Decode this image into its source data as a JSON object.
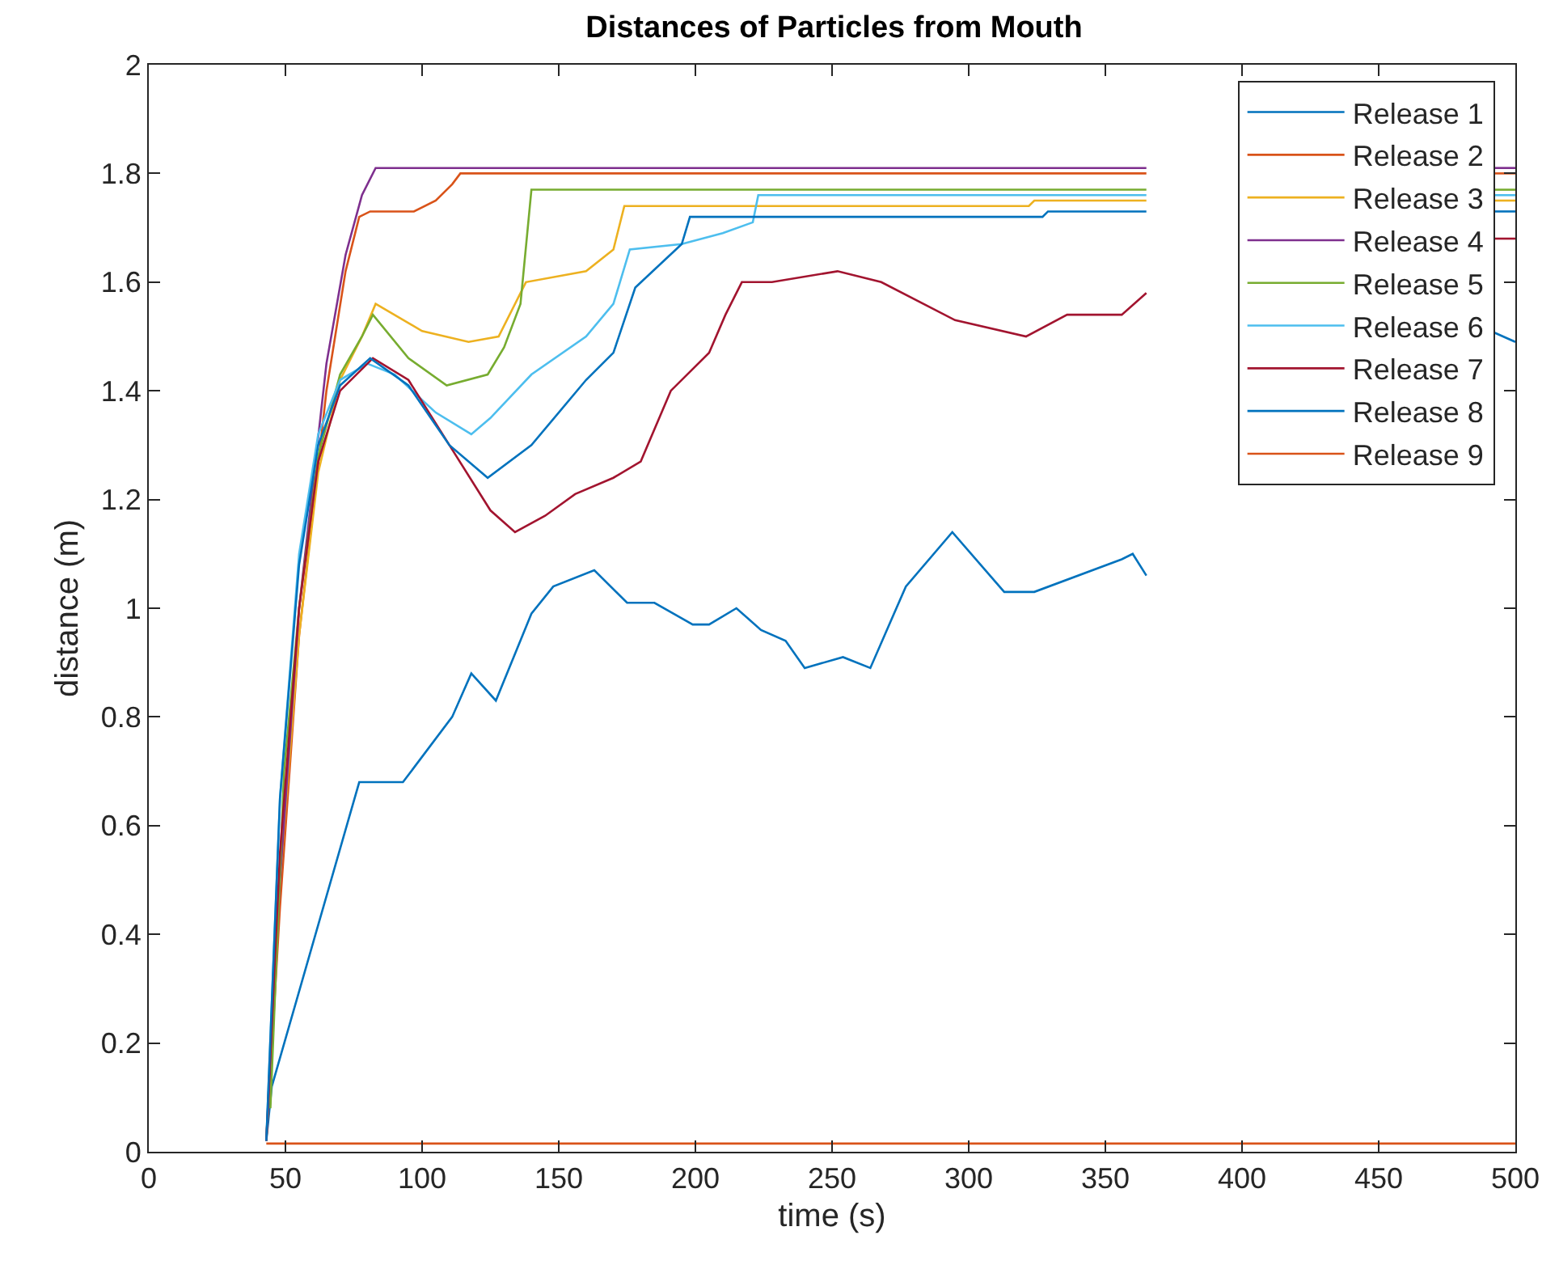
{
  "chart_data": {
    "type": "line",
    "title": "Distances of Particles from Mouth",
    "xlabel": "time (s)",
    "ylabel": "distance (m)",
    "xlim": [
      0,
      500
    ],
    "xticks": [
      0,
      50,
      100,
      150,
      200,
      250,
      300,
      350,
      400,
      450,
      500
    ],
    "ylim": [
      0,
      2
    ],
    "yticks": [
      0,
      0.2,
      0.4,
      0.6,
      0.8,
      1,
      1.2,
      1.4,
      1.6,
      1.8,
      2
    ],
    "grid": false,
    "legend": "top right",
    "marker": "none",
    "line_style": "solid",
    "series": [
      {
        "name": "Release 1",
        "color": "#0072bd",
        "x": [
          43,
          45,
          77,
          93,
          111,
          118,
          127,
          140,
          148,
          163,
          175,
          185,
          199,
          205,
          215,
          224,
          233,
          240,
          254,
          264,
          277,
          294,
          313,
          324,
          356,
          360,
          365,
          430,
          491,
          500
        ],
        "values": [
          0.02,
          0.12,
          0.68,
          0.68,
          0.8,
          0.88,
          0.83,
          0.99,
          1.04,
          1.07,
          1.01,
          1.01,
          0.97,
          0.97,
          1.0,
          0.96,
          0.94,
          0.89,
          0.91,
          0.89,
          1.04,
          1.14,
          1.03,
          1.03,
          1.09,
          1.1,
          1.06,
          null,
          1.51,
          1.49
        ]
      },
      {
        "name": "Release 2",
        "color": "#d95319",
        "x": [
          43,
          48,
          55,
          65,
          72,
          77,
          81,
          97,
          105,
          111,
          114,
          365,
          430,
          491,
          500
        ],
        "values": [
          0.02,
          0.45,
          0.95,
          1.4,
          1.62,
          1.72,
          1.73,
          1.73,
          1.75,
          1.78,
          1.8,
          1.8,
          null,
          1.8,
          1.8
        ]
      },
      {
        "name": "Release 3",
        "color": "#edb120",
        "x": [
          43,
          48,
          55,
          62,
          70,
          78,
          83,
          100,
          117,
          128,
          138,
          160,
          170,
          174,
          322,
          324,
          365,
          430,
          491,
          500
        ],
        "values": [
          0.02,
          0.5,
          0.95,
          1.25,
          1.42,
          1.5,
          1.56,
          1.51,
          1.49,
          1.5,
          1.6,
          1.62,
          1.66,
          1.74,
          1.74,
          1.75,
          1.75,
          null,
          1.75,
          1.75
        ]
      },
      {
        "name": "Release 4",
        "color": "#7e2f8e",
        "x": [
          43,
          48,
          55,
          65,
          72,
          78,
          83,
          365,
          430,
          491,
          500
        ],
        "values": [
          0.02,
          0.5,
          1.0,
          1.45,
          1.65,
          1.76,
          1.81,
          1.81,
          null,
          1.81,
          1.81
        ]
      },
      {
        "name": "Release 5",
        "color": "#77ac30",
        "x": [
          44.5,
          49.5,
          55,
          62,
          70,
          78,
          82,
          95,
          109,
          124,
          130,
          136,
          140,
          365,
          430,
          491,
          500
        ],
        "values": [
          0.08,
          0.7,
          1.0,
          1.28,
          1.43,
          1.5,
          1.54,
          1.46,
          1.41,
          1.43,
          1.48,
          1.56,
          1.77,
          1.77,
          null,
          1.77,
          1.77
        ]
      },
      {
        "name": "Release 6",
        "color": "#4dbeee",
        "x": [
          43,
          48,
          55,
          62,
          70,
          80,
          90,
          105,
          118,
          125,
          140,
          160,
          170,
          176,
          195,
          210,
          221,
          223,
          365,
          430,
          491,
          500
        ],
        "values": [
          0.02,
          0.65,
          1.1,
          1.32,
          1.42,
          1.45,
          1.43,
          1.36,
          1.32,
          1.35,
          1.43,
          1.5,
          1.56,
          1.66,
          1.67,
          1.69,
          1.71,
          1.76,
          1.76,
          null,
          1.76,
          1.76
        ]
      },
      {
        "name": "Release 7",
        "color": "#a2142f",
        "x": [
          43,
          48,
          55,
          62,
          70,
          82,
          95,
          110,
          125,
          134,
          145,
          156,
          170,
          180,
          191,
          205,
          211,
          217,
          228,
          252,
          268,
          295,
          321,
          336,
          356,
          365,
          430,
          491,
          500
        ],
        "values": [
          0.02,
          0.55,
          1.0,
          1.27,
          1.4,
          1.46,
          1.42,
          1.3,
          1.18,
          1.14,
          1.17,
          1.21,
          1.24,
          1.27,
          1.4,
          1.47,
          1.54,
          1.6,
          1.6,
          1.62,
          1.6,
          1.53,
          1.5,
          1.54,
          1.54,
          1.58,
          null,
          1.68,
          1.68
        ]
      },
      {
        "name": "Release 8",
        "color": "#0072bd",
        "x": [
          43,
          48,
          55,
          62,
          70,
          81,
          95,
          110,
          124,
          140,
          160,
          170,
          178,
          195,
          198,
          327,
          329,
          365,
          430,
          491,
          500
        ],
        "values": [
          0.02,
          0.65,
          1.08,
          1.3,
          1.41,
          1.46,
          1.41,
          1.3,
          1.24,
          1.3,
          1.42,
          1.47,
          1.59,
          1.67,
          1.72,
          1.72,
          1.73,
          1.73,
          null,
          1.73,
          1.73
        ]
      },
      {
        "name": "Release 9",
        "color": "#d95319",
        "x": [
          43,
          500
        ],
        "values": [
          0.015,
          0.015
        ]
      }
    ]
  }
}
